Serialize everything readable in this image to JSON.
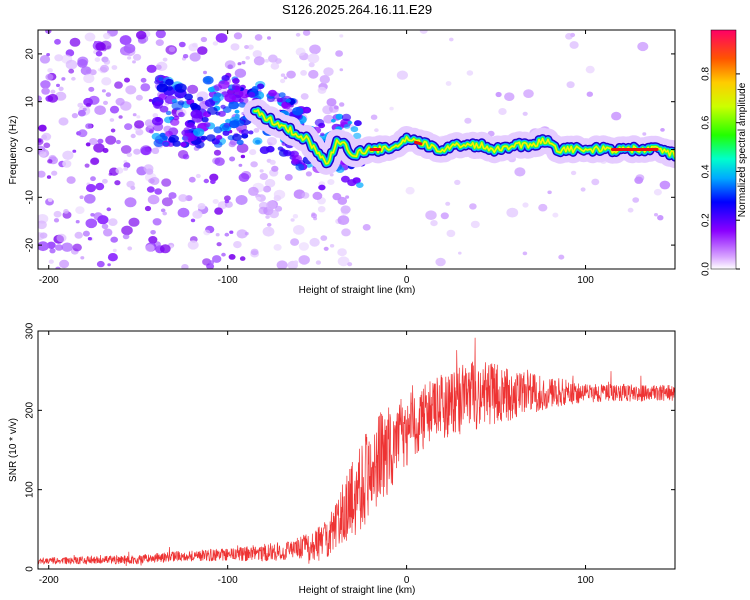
{
  "title": "S126.2025.264.16.11.E29",
  "chart_data": [
    {
      "type": "heatmap",
      "name": "spectrogram",
      "xlabel": "Height of straight line (km)",
      "ylabel": "Frequency (Hz)",
      "xlim": [
        -206,
        150
      ],
      "ylim": [
        -25,
        25
      ],
      "xticks": [
        -200,
        -100,
        0,
        100
      ],
      "yticks": [
        -20,
        -10,
        0,
        10,
        20
      ],
      "colorbar": {
        "label": "Normalized spectral amplitude",
        "range": [
          0,
          0.98
        ],
        "ticks": [
          0.0,
          0.2,
          0.4,
          0.6,
          0.8
        ]
      },
      "ridge_frequency_hz": [
        {
          "x": -85,
          "y": 8
        },
        {
          "x": -75,
          "y": 6
        },
        {
          "x": -65,
          "y": 4
        },
        {
          "x": -55,
          "y": 2
        },
        {
          "x": -45,
          "y": -3
        },
        {
          "x": -38,
          "y": 2
        },
        {
          "x": -30,
          "y": -1
        },
        {
          "x": -20,
          "y": 0
        },
        {
          "x": -10,
          "y": 0
        },
        {
          "x": 0,
          "y": 2
        },
        {
          "x": 10,
          "y": 1
        },
        {
          "x": 20,
          "y": 0
        },
        {
          "x": 30,
          "y": 1
        },
        {
          "x": 40,
          "y": 1
        },
        {
          "x": 50,
          "y": 0
        },
        {
          "x": 60,
          "y": 1
        },
        {
          "x": 70,
          "y": 1
        },
        {
          "x": 78,
          "y": 2
        },
        {
          "x": 85,
          "y": 0
        },
        {
          "x": 100,
          "y": 0
        },
        {
          "x": 120,
          "y": 0
        },
        {
          "x": 140,
          "y": 0
        },
        {
          "x": 150,
          "y": -1
        }
      ]
    },
    {
      "type": "line",
      "name": "snr",
      "xlabel": "Height of straight line (km)",
      "ylabel": "SNR (10 * v/v)",
      "xlim": [
        -206,
        150
      ],
      "ylim": [
        0,
        300
      ],
      "xticks": [
        -200,
        -100,
        0,
        100
      ],
      "yticks": [
        0,
        100,
        200,
        300
      ],
      "color": "#ee3333",
      "trend": [
        {
          "x": -206,
          "y": 10
        },
        {
          "x": -150,
          "y": 12
        },
        {
          "x": -130,
          "y": 16
        },
        {
          "x": -100,
          "y": 18
        },
        {
          "x": -70,
          "y": 22
        },
        {
          "x": -50,
          "y": 30
        },
        {
          "x": -40,
          "y": 50
        },
        {
          "x": -30,
          "y": 90
        },
        {
          "x": -25,
          "y": 110
        },
        {
          "x": -15,
          "y": 140
        },
        {
          "x": -5,
          "y": 160
        },
        {
          "x": 5,
          "y": 185
        },
        {
          "x": 15,
          "y": 200
        },
        {
          "x": 25,
          "y": 210
        },
        {
          "x": 40,
          "y": 220
        },
        {
          "x": 60,
          "y": 220
        },
        {
          "x": 75,
          "y": 222
        },
        {
          "x": 90,
          "y": 222
        },
        {
          "x": 110,
          "y": 222
        },
        {
          "x": 130,
          "y": 222
        },
        {
          "x": 150,
          "y": 222
        }
      ],
      "noise_amplitude": [
        {
          "x": -206,
          "y": 4
        },
        {
          "x": -140,
          "y": 6
        },
        {
          "x": -100,
          "y": 8
        },
        {
          "x": -60,
          "y": 14
        },
        {
          "x": -40,
          "y": 30
        },
        {
          "x": -25,
          "y": 60
        },
        {
          "x": -10,
          "y": 55
        },
        {
          "x": 10,
          "y": 40
        },
        {
          "x": 40,
          "y": 45
        },
        {
          "x": 70,
          "y": 25
        },
        {
          "x": 100,
          "y": 12
        },
        {
          "x": 150,
          "y": 10
        }
      ]
    }
  ]
}
